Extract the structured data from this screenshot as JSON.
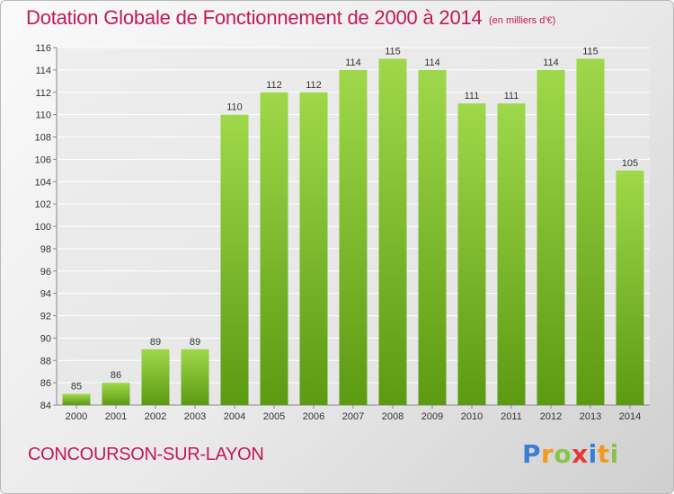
{
  "header": {
    "title": "Dotation Globale de Fonctionnement de 2000 à 2014",
    "subtitle": "(en milliers d'€)"
  },
  "footer": {
    "commune": "CONCOURSON-SUR-LAYON",
    "logo_letters": [
      "P",
      "r",
      "o",
      "x",
      "i",
      "t",
      "i"
    ],
    "logo_colors": [
      "#3a7fd0",
      "#f29a1d",
      "#8bc34a",
      "#e53935",
      "#3a7fd0",
      "#f29a1d",
      "#8bc34a"
    ]
  },
  "colors": {
    "bar_light": "#9fd84a",
    "bar_dark": "#5c9a12",
    "title": "#c2185b",
    "grid": "#ffffff",
    "axis_text": "#333333"
  },
  "chart_data": {
    "type": "bar",
    "categories": [
      "2000",
      "2001",
      "2002",
      "2003",
      "2004",
      "2005",
      "2006",
      "2007",
      "2008",
      "2009",
      "2010",
      "2011",
      "2012",
      "2013",
      "2014"
    ],
    "values": [
      85,
      86,
      89,
      89,
      110,
      112,
      112,
      114,
      115,
      114,
      111,
      111,
      114,
      115,
      105
    ],
    "data_labels": [
      "85",
      "86",
      "89",
      "89",
      "110",
      "112",
      "112",
      "114",
      "115",
      "114",
      "111",
      "111",
      "114",
      "115",
      "105"
    ],
    "yticks": [
      84,
      86,
      88,
      90,
      92,
      94,
      96,
      98,
      100,
      102,
      104,
      106,
      108,
      110,
      112,
      114,
      116
    ],
    "ylim": [
      84,
      116
    ],
    "grid": true
  }
}
